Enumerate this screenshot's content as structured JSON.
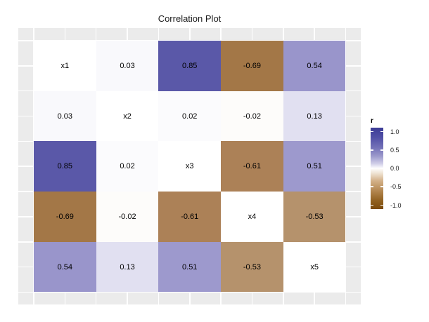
{
  "chart_data": {
    "type": "heatmap",
    "title": "Correlation Plot",
    "variables": [
      "x1",
      "x2",
      "x3",
      "x4",
      "x5"
    ],
    "matrix_values": [
      [
        null,
        0.03,
        0.85,
        -0.69,
        0.54
      ],
      [
        0.03,
        null,
        0.02,
        -0.02,
        0.13
      ],
      [
        0.85,
        0.02,
        null,
        -0.61,
        0.51
      ],
      [
        -0.69,
        -0.02,
        -0.61,
        null,
        -0.53
      ],
      [
        0.54,
        0.13,
        0.51,
        -0.53,
        null
      ]
    ],
    "cells": [
      [
        {
          "label": "x1",
          "color": "#ffffff"
        },
        {
          "label": "0.03",
          "color": "#f9f9fc"
        },
        {
          "label": "0.85",
          "color": "#5a58a8"
        },
        {
          "label": "-0.69",
          "color": "#a37747"
        },
        {
          "label": "0.54",
          "color": "#9995cb"
        }
      ],
      [
        {
          "label": "0.03",
          "color": "#f9f9fc"
        },
        {
          "label": "x2",
          "color": "#ffffff"
        },
        {
          "label": "0.02",
          "color": "#fbfbfd"
        },
        {
          "label": "-0.02",
          "color": "#fdfcfa"
        },
        {
          "label": "0.13",
          "color": "#e1e0f1"
        }
      ],
      [
        {
          "label": "0.85",
          "color": "#5a58a8"
        },
        {
          "label": "0.02",
          "color": "#fbfbfd"
        },
        {
          "label": "x3",
          "color": "#ffffff"
        },
        {
          "label": "-0.61",
          "color": "#ac8157"
        },
        {
          "label": "0.51",
          "color": "#9d99cd"
        }
      ],
      [
        {
          "label": "-0.69",
          "color": "#a37747"
        },
        {
          "label": "-0.02",
          "color": "#fdfcfa"
        },
        {
          "label": "-0.61",
          "color": "#ac8157"
        },
        {
          "label": "x4",
          "color": "#ffffff"
        },
        {
          "label": "-0.53",
          "color": "#b5926c"
        }
      ],
      [
        {
          "label": "0.54",
          "color": "#9995cb"
        },
        {
          "label": "0.13",
          "color": "#e1e0f1"
        },
        {
          "label": "0.51",
          "color": "#9d99cd"
        },
        {
          "label": "-0.53",
          "color": "#b5926c"
        },
        {
          "label": "x5",
          "color": "#ffffff"
        }
      ]
    ],
    "legend": {
      "title": "r",
      "tick_labels": [
        "1.0",
        "0.5",
        "0.0",
        "-0.5",
        "-1.0"
      ],
      "range": [
        -1.0,
        1.0
      ],
      "gradient_stops": [
        [
          0.0,
          "#3c3c96"
        ],
        [
          0.12,
          "#5150a6"
        ],
        [
          0.25,
          "#7573b8"
        ],
        [
          0.35,
          "#9c99cc"
        ],
        [
          0.44,
          "#cfcde8"
        ],
        [
          0.5,
          "#fefefe"
        ],
        [
          0.56,
          "#efe3d3"
        ],
        [
          0.65,
          "#d4b28b"
        ],
        [
          0.78,
          "#b2854e"
        ],
        [
          0.9,
          "#90601f"
        ],
        [
          1.0,
          "#7b4a0b"
        ]
      ]
    },
    "layout_hints": {
      "panel_background": "#ebebeb",
      "gridline_color": "#ffffff",
      "cell_text_color": "#000000",
      "legend_position": "right",
      "grid": "on"
    }
  }
}
